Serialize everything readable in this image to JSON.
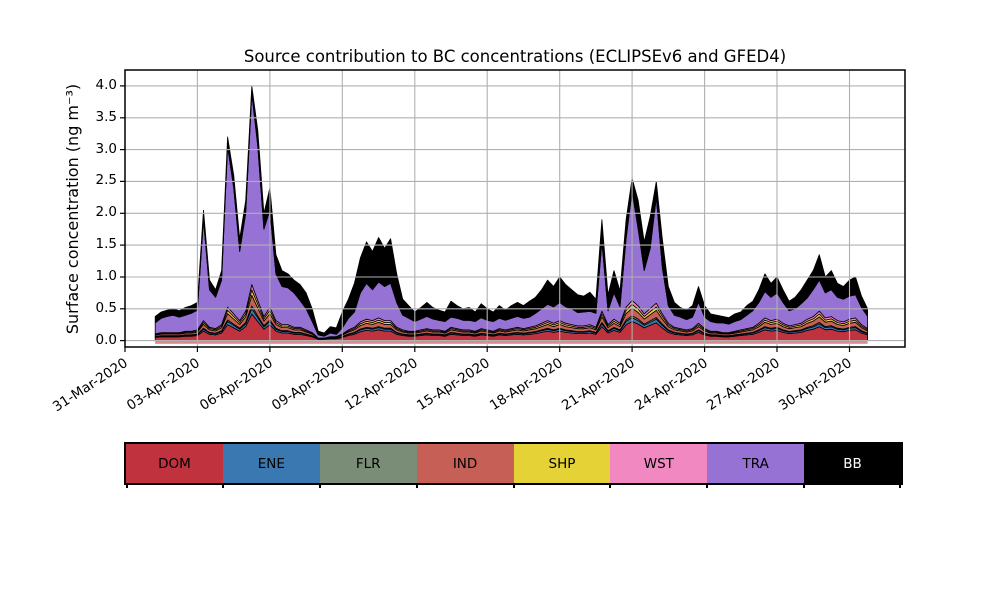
{
  "figure": {
    "title": "Source contribution to BC concentrations (ECLIPSEv6 and GFED4)",
    "ylabel": "Surface concentration (ng m⁻³)",
    "ytick_labels": [
      "0.0",
      "0.5",
      "1.0",
      "1.5",
      "2.0",
      "2.5",
      "3.0",
      "3.5",
      "4.0"
    ],
    "xtick_labels": [
      "31-Mar-2020",
      "03-Apr-2020",
      "06-Apr-2020",
      "09-Apr-2020",
      "12-Apr-2020",
      "15-Apr-2020",
      "18-Apr-2020",
      "21-Apr-2020",
      "24-Apr-2020",
      "27-Apr-2020",
      "30-Apr-2020"
    ]
  },
  "legend": {
    "entries": [
      {
        "label": "DOM",
        "color": "#c0323e",
        "text": "#000000"
      },
      {
        "label": "ENE",
        "color": "#3a78b2",
        "text": "#000000"
      },
      {
        "label": "FLR",
        "color": "#7a8d77",
        "text": "#000000"
      },
      {
        "label": "IND",
        "color": "#c65f55",
        "text": "#000000"
      },
      {
        "label": "SHP",
        "color": "#e5d236",
        "text": "#000000"
      },
      {
        "label": "WST",
        "color": "#f288c2",
        "text": "#000000"
      },
      {
        "label": "TRA",
        "color": "#9672d4",
        "text": "#000000"
      },
      {
        "label": "BB",
        "color": "#000000",
        "text": "#ffffff"
      }
    ]
  },
  "chart_data": {
    "type": "area",
    "stacked": true,
    "title": "Source contribution to BC concentrations (ECLIPSEv6 and GFED4)",
    "xlabel": "",
    "ylabel": "Surface concentration (ng m-3)",
    "ylim": [
      -0.1,
      4.25
    ],
    "xlim_days": [
      0,
      32.3
    ],
    "grid": true,
    "x_epoch": "31-Mar-2020 00:00",
    "x_unit": "days",
    "x_start": 1.25,
    "x_step": 0.25,
    "x_tick_days": [
      0,
      3,
      6,
      9,
      12,
      15,
      18,
      21,
      24,
      27,
      30
    ],
    "x_tick_labels": [
      "31-Mar-2020",
      "03-Apr-2020",
      "06-Apr-2020",
      "09-Apr-2020",
      "12-Apr-2020",
      "15-Apr-2020",
      "18-Apr-2020",
      "21-Apr-2020",
      "24-Apr-2020",
      "27-Apr-2020",
      "30-Apr-2020"
    ],
    "y_grid": [
      0,
      0.5,
      1,
      1.5,
      2,
      2.5,
      3,
      3.5,
      4
    ],
    "series": [
      {
        "name": "DOM",
        "color": "#c0323e",
        "values": [
          0.05,
          0.06,
          0.06,
          0.06,
          0.06,
          0.07,
          0.07,
          0.08,
          0.15,
          0.1,
          0.09,
          0.12,
          0.25,
          0.2,
          0.15,
          0.22,
          0.42,
          0.3,
          0.18,
          0.25,
          0.15,
          0.12,
          0.12,
          0.1,
          0.1,
          0.08,
          0.06,
          0.02,
          0.02,
          0.03,
          0.03,
          0.05,
          0.08,
          0.1,
          0.14,
          0.16,
          0.15,
          0.17,
          0.15,
          0.15,
          0.1,
          0.08,
          0.07,
          0.07,
          0.08,
          0.09,
          0.08,
          0.08,
          0.07,
          0.1,
          0.09,
          0.08,
          0.08,
          0.07,
          0.09,
          0.08,
          0.07,
          0.09,
          0.08,
          0.09,
          0.1,
          0.09,
          0.1,
          0.11,
          0.13,
          0.15,
          0.13,
          0.15,
          0.13,
          0.12,
          0.11,
          0.11,
          0.12,
          0.1,
          0.22,
          0.12,
          0.16,
          0.13,
          0.25,
          0.3,
          0.26,
          0.2,
          0.24,
          0.28,
          0.2,
          0.13,
          0.1,
          0.09,
          0.08,
          0.09,
          0.13,
          0.09,
          0.07,
          0.07,
          0.06,
          0.06,
          0.07,
          0.08,
          0.09,
          0.1,
          0.13,
          0.17,
          0.15,
          0.16,
          0.13,
          0.11,
          0.12,
          0.13,
          0.16,
          0.18,
          0.22,
          0.17,
          0.18,
          0.15,
          0.14,
          0.16,
          0.17,
          0.12,
          0.09
        ]
      },
      {
        "name": "ENE",
        "color": "#3a78b2",
        "values": [
          0.01,
          0.012,
          0.012,
          0.012,
          0.012,
          0.014,
          0.014,
          0.016,
          0.03,
          0.02,
          0.018,
          0.024,
          0.05,
          0.04,
          0.03,
          0.044,
          0.084,
          0.06,
          0.036,
          0.05,
          0.03,
          0.024,
          0.024,
          0.02,
          0.02,
          0.016,
          0.012,
          0.004,
          0.004,
          0.006,
          0.006,
          0.01,
          0.016,
          0.02,
          0.028,
          0.032,
          0.03,
          0.034,
          0.03,
          0.03,
          0.02,
          0.016,
          0.014,
          0.014,
          0.016,
          0.018,
          0.016,
          0.016,
          0.014,
          0.02,
          0.018,
          0.016,
          0.016,
          0.014,
          0.018,
          0.016,
          0.014,
          0.018,
          0.016,
          0.018,
          0.02,
          0.018,
          0.02,
          0.022,
          0.026,
          0.03,
          0.026,
          0.03,
          0.026,
          0.024,
          0.022,
          0.022,
          0.024,
          0.02,
          0.044,
          0.024,
          0.032,
          0.026,
          0.05,
          0.06,
          0.052,
          0.04,
          0.048,
          0.056,
          0.04,
          0.026,
          0.02,
          0.018,
          0.016,
          0.018,
          0.026,
          0.018,
          0.014,
          0.014,
          0.012,
          0.012,
          0.014,
          0.016,
          0.018,
          0.02,
          0.026,
          0.034,
          0.03,
          0.032,
          0.026,
          0.022,
          0.024,
          0.026,
          0.032,
          0.036,
          0.044,
          0.034,
          0.036,
          0.03,
          0.028,
          0.032,
          0.034,
          0.024,
          0.018
        ]
      },
      {
        "name": "FLR",
        "color": "#7a8d77",
        "values": [
          0.005,
          0.006,
          0.006,
          0.006,
          0.006,
          0.007,
          0.007,
          0.008,
          0.015,
          0.01,
          0.009,
          0.012,
          0.025,
          0.02,
          0.015,
          0.022,
          0.042,
          0.03,
          0.018,
          0.025,
          0.015,
          0.012,
          0.012,
          0.01,
          0.01,
          0.008,
          0.006,
          0.002,
          0.002,
          0.003,
          0.003,
          0.005,
          0.008,
          0.01,
          0.014,
          0.016,
          0.015,
          0.017,
          0.015,
          0.015,
          0.01,
          0.008,
          0.007,
          0.007,
          0.008,
          0.009,
          0.008,
          0.008,
          0.007,
          0.01,
          0.009,
          0.008,
          0.008,
          0.007,
          0.009,
          0.008,
          0.007,
          0.009,
          0.008,
          0.009,
          0.01,
          0.009,
          0.01,
          0.011,
          0.013,
          0.015,
          0.013,
          0.015,
          0.013,
          0.012,
          0.011,
          0.011,
          0.012,
          0.01,
          0.022,
          0.012,
          0.016,
          0.013,
          0.025,
          0.03,
          0.026,
          0.02,
          0.024,
          0.028,
          0.02,
          0.013,
          0.01,
          0.009,
          0.008,
          0.009,
          0.013,
          0.009,
          0.007,
          0.007,
          0.006,
          0.006,
          0.007,
          0.008,
          0.009,
          0.01,
          0.013,
          0.017,
          0.015,
          0.016,
          0.013,
          0.011,
          0.012,
          0.013,
          0.016,
          0.018,
          0.022,
          0.017,
          0.018,
          0.015,
          0.014,
          0.016,
          0.017,
          0.012,
          0.009
        ]
      },
      {
        "name": "IND",
        "color": "#c65f55",
        "values": [
          0.02,
          0.024,
          0.024,
          0.024,
          0.024,
          0.028,
          0.028,
          0.032,
          0.06,
          0.04,
          0.036,
          0.048,
          0.1,
          0.08,
          0.06,
          0.088,
          0.168,
          0.12,
          0.072,
          0.1,
          0.06,
          0.048,
          0.048,
          0.04,
          0.04,
          0.032,
          0.024,
          0.008,
          0.008,
          0.012,
          0.012,
          0.02,
          0.032,
          0.04,
          0.056,
          0.064,
          0.06,
          0.068,
          0.06,
          0.06,
          0.04,
          0.032,
          0.028,
          0.028,
          0.032,
          0.036,
          0.032,
          0.032,
          0.028,
          0.04,
          0.036,
          0.032,
          0.032,
          0.028,
          0.036,
          0.032,
          0.028,
          0.036,
          0.032,
          0.036,
          0.04,
          0.036,
          0.04,
          0.044,
          0.052,
          0.06,
          0.052,
          0.06,
          0.052,
          0.048,
          0.044,
          0.044,
          0.048,
          0.04,
          0.088,
          0.048,
          0.064,
          0.052,
          0.1,
          0.12,
          0.104,
          0.08,
          0.096,
          0.112,
          0.08,
          0.052,
          0.04,
          0.036,
          0.032,
          0.036,
          0.052,
          0.036,
          0.028,
          0.028,
          0.024,
          0.024,
          0.028,
          0.032,
          0.036,
          0.04,
          0.052,
          0.068,
          0.06,
          0.064,
          0.052,
          0.044,
          0.048,
          0.052,
          0.064,
          0.072,
          0.088,
          0.068,
          0.072,
          0.06,
          0.056,
          0.064,
          0.068,
          0.048,
          0.036
        ]
      },
      {
        "name": "SHP",
        "color": "#e5d236",
        "values": [
          0.01,
          0.012,
          0.012,
          0.012,
          0.012,
          0.014,
          0.014,
          0.016,
          0.03,
          0.02,
          0.018,
          0.024,
          0.05,
          0.04,
          0.03,
          0.044,
          0.084,
          0.06,
          0.036,
          0.05,
          0.03,
          0.024,
          0.024,
          0.02,
          0.02,
          0.016,
          0.012,
          0.004,
          0.004,
          0.006,
          0.006,
          0.01,
          0.016,
          0.02,
          0.028,
          0.032,
          0.03,
          0.034,
          0.03,
          0.03,
          0.02,
          0.016,
          0.014,
          0.014,
          0.016,
          0.018,
          0.016,
          0.016,
          0.014,
          0.02,
          0.018,
          0.016,
          0.016,
          0.014,
          0.018,
          0.016,
          0.014,
          0.018,
          0.016,
          0.018,
          0.02,
          0.018,
          0.02,
          0.022,
          0.026,
          0.03,
          0.026,
          0.03,
          0.026,
          0.024,
          0.022,
          0.022,
          0.024,
          0.02,
          0.044,
          0.024,
          0.032,
          0.026,
          0.05,
          0.06,
          0.052,
          0.04,
          0.048,
          0.056,
          0.04,
          0.026,
          0.02,
          0.018,
          0.016,
          0.018,
          0.026,
          0.018,
          0.014,
          0.014,
          0.012,
          0.012,
          0.014,
          0.016,
          0.018,
          0.02,
          0.026,
          0.034,
          0.03,
          0.032,
          0.026,
          0.022,
          0.024,
          0.026,
          0.032,
          0.036,
          0.044,
          0.034,
          0.036,
          0.03,
          0.028,
          0.032,
          0.034,
          0.024,
          0.018
        ]
      },
      {
        "name": "WST",
        "color": "#f288c2",
        "values": [
          0.01,
          0.012,
          0.012,
          0.012,
          0.012,
          0.014,
          0.014,
          0.016,
          0.03,
          0.02,
          0.018,
          0.024,
          0.05,
          0.04,
          0.03,
          0.044,
          0.084,
          0.06,
          0.036,
          0.05,
          0.03,
          0.024,
          0.024,
          0.02,
          0.02,
          0.016,
          0.012,
          0.004,
          0.004,
          0.006,
          0.006,
          0.01,
          0.016,
          0.02,
          0.028,
          0.032,
          0.03,
          0.034,
          0.03,
          0.03,
          0.02,
          0.016,
          0.014,
          0.014,
          0.016,
          0.018,
          0.016,
          0.016,
          0.014,
          0.02,
          0.018,
          0.016,
          0.016,
          0.014,
          0.018,
          0.016,
          0.014,
          0.018,
          0.016,
          0.018,
          0.02,
          0.018,
          0.02,
          0.022,
          0.026,
          0.03,
          0.026,
          0.03,
          0.026,
          0.024,
          0.022,
          0.022,
          0.024,
          0.02,
          0.044,
          0.024,
          0.032,
          0.026,
          0.05,
          0.06,
          0.052,
          0.04,
          0.048,
          0.056,
          0.04,
          0.026,
          0.02,
          0.018,
          0.016,
          0.018,
          0.026,
          0.018,
          0.014,
          0.014,
          0.012,
          0.012,
          0.014,
          0.016,
          0.018,
          0.02,
          0.026,
          0.034,
          0.03,
          0.032,
          0.026,
          0.022,
          0.024,
          0.026,
          0.032,
          0.036,
          0.044,
          0.034,
          0.036,
          0.03,
          0.028,
          0.032,
          0.034,
          0.024,
          0.018
        ]
      },
      {
        "name": "TRA",
        "color": "#9672d4",
        "values": [
          0.175,
          0.224,
          0.254,
          0.274,
          0.244,
          0.253,
          0.283,
          0.312,
          1.585,
          0.59,
          0.491,
          0.698,
          2.525,
          1.98,
          1.085,
          1.538,
          2.998,
          2.42,
          1.372,
          1.525,
          0.735,
          0.598,
          0.578,
          0.54,
          0.42,
          0.332,
          0.174,
          0.048,
          0.028,
          0.057,
          0.037,
          0.095,
          0.182,
          0.24,
          0.456,
          0.564,
          0.485,
          0.563,
          0.535,
          0.585,
          0.39,
          0.232,
          0.203,
          0.153,
          0.172,
          0.191,
          0.172,
          0.152,
          0.153,
          0.16,
          0.161,
          0.152,
          0.152,
          0.153,
          0.171,
          0.152,
          0.153,
          0.161,
          0.152,
          0.161,
          0.17,
          0.161,
          0.16,
          0.199,
          0.227,
          0.255,
          0.257,
          0.285,
          0.257,
          0.248,
          0.209,
          0.219,
          0.208,
          0.22,
          1.088,
          0.218,
          0.414,
          0.257,
          1.075,
          1.72,
          1.204,
          0.68,
          0.946,
          1.662,
          0.73,
          0.277,
          0.19,
          0.181,
          0.162,
          0.181,
          0.327,
          0.181,
          0.153,
          0.133,
          0.154,
          0.134,
          0.153,
          0.162,
          0.211,
          0.26,
          0.327,
          0.413,
          0.365,
          0.414,
          0.327,
          0.239,
          0.248,
          0.307,
          0.334,
          0.422,
          0.488,
          0.393,
          0.422,
          0.365,
          0.356,
          0.364,
          0.363,
          0.268,
          0.191
        ]
      },
      {
        "name": "BB",
        "color": "#000000",
        "values": [
          0.1,
          0.1,
          0.1,
          0.1,
          0.1,
          0.12,
          0.12,
          0.12,
          0.15,
          0.15,
          0.12,
          0.15,
          0.15,
          0.2,
          0.2,
          0.2,
          0.12,
          0.25,
          0.25,
          0.35,
          0.3,
          0.25,
          0.22,
          0.2,
          0.25,
          0.25,
          0.2,
          0.06,
          0.05,
          0.1,
          0.1,
          0.25,
          0.3,
          0.45,
          0.55,
          0.65,
          0.6,
          0.7,
          0.6,
          0.7,
          0.45,
          0.25,
          0.2,
          0.15,
          0.18,
          0.22,
          0.18,
          0.16,
          0.15,
          0.25,
          0.2,
          0.18,
          0.2,
          0.15,
          0.22,
          0.18,
          0.15,
          0.2,
          0.16,
          0.2,
          0.22,
          0.2,
          0.25,
          0.25,
          0.3,
          0.38,
          0.32,
          0.4,
          0.35,
          0.3,
          0.28,
          0.25,
          0.3,
          0.22,
          0.35,
          0.25,
          0.35,
          0.25,
          0.3,
          0.2,
          0.45,
          0.45,
          0.5,
          0.25,
          0.45,
          0.3,
          0.2,
          0.15,
          0.15,
          0.18,
          0.25,
          0.18,
          0.12,
          0.12,
          0.1,
          0.1,
          0.12,
          0.12,
          0.15,
          0.15,
          0.2,
          0.28,
          0.22,
          0.25,
          0.2,
          0.15,
          0.18,
          0.22,
          0.28,
          0.3,
          0.4,
          0.25,
          0.3,
          0.22,
          0.2,
          0.25,
          0.28,
          0.18,
          0.12
        ]
      }
    ]
  }
}
